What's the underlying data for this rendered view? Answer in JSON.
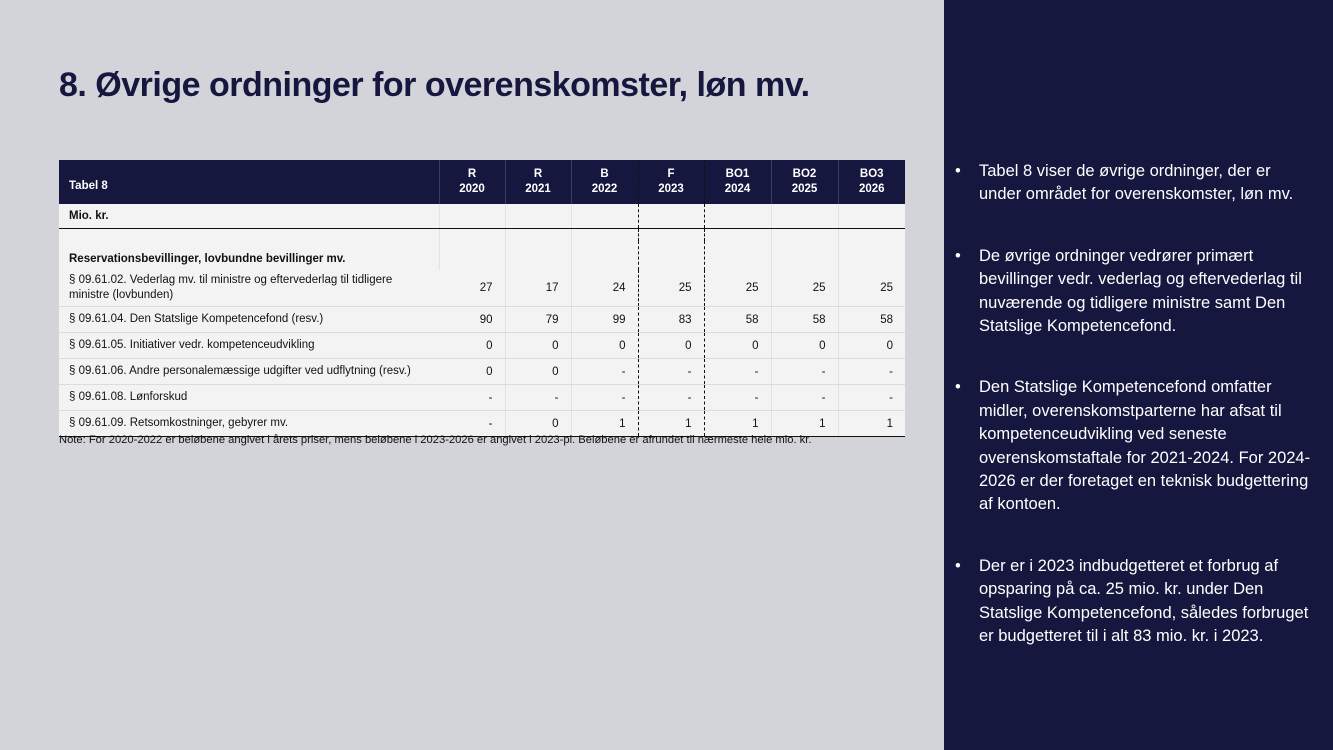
{
  "title": "8. Øvrige ordninger for overenskomster, løn mv.",
  "table": {
    "label": "Tabel 8",
    "columns": [
      {
        "type": "R",
        "year": "2020"
      },
      {
        "type": "R",
        "year": "2021"
      },
      {
        "type": "B",
        "year": "2022"
      },
      {
        "type": "F",
        "year": "2023"
      },
      {
        "type": "BO1",
        "year": "2024"
      },
      {
        "type": "BO2",
        "year": "2025"
      },
      {
        "type": "BO3",
        "year": "2026"
      }
    ],
    "unit": "Mio. kr.",
    "section": "Reservationsbevillinger, lovbundne bevillinger mv.",
    "rows": [
      {
        "label": "§ 09.61.02. Vederlag mv. til ministre og eftervederlag til tidligere ministre (lovbunden)",
        "values": [
          "27",
          "17",
          "24",
          "25",
          "25",
          "25",
          "25"
        ]
      },
      {
        "label": "§ 09.61.04. Den Statslige Kompetencefond (resv.)",
        "values": [
          "90",
          "79",
          "99",
          "83",
          "58",
          "58",
          "58"
        ]
      },
      {
        "label": "§ 09.61.05. Initiativer vedr. kompetenceudvikling",
        "values": [
          "0",
          "0",
          "0",
          "0",
          "0",
          "0",
          "0"
        ]
      },
      {
        "label": "§ 09.61.06. Andre personalemæssige udgifter ved udflytning (resv.)",
        "values": [
          "0",
          "0",
          "-",
          "-",
          "-",
          "-",
          "-"
        ]
      },
      {
        "label": "§ 09.61.08. Lønforskud",
        "values": [
          "-",
          "-",
          "-",
          "-",
          "-",
          "-",
          "-"
        ]
      },
      {
        "label": "§ 09.61.09. Retsomkostninger, gebyrer mv.",
        "values": [
          "-",
          "0",
          "1",
          "1",
          "1",
          "1",
          "1"
        ]
      }
    ],
    "note": "Note: For 2020-2022 er beløbene angivet i årets priser, mens beløbene i 2023-2026 er angivet i 2023-pl. Beløbene er afrundet til nærmeste hele mio. kr."
  },
  "bullets": [
    "Tabel 8 viser de øvrige ordninger, der er under området for overenskomster, løn mv.",
    "De øvrige ordninger vedrører primært bevillinger vedr. vederlag og eftervederlag til nuværende og tidligere ministre samt Den Statslige Kompetencefond.",
    "Den Statslige Kompetencefond omfatter midler, overenskomstparterne har afsat til kompetenceudvikling ved seneste overenskomstaftale for 2021-2024. For 2024-2026 er der foretaget en teknisk budgettering af kontoen.",
    "Der er i 2023 indbudgetteret et forbrug af opsparing på ca. 25 mio. kr. under Den Statslige Kompetencefond, således forbruget er budgetteret til i alt 83 mio. kr. i 2023."
  ],
  "bullet_symbol": "•",
  "colors": {
    "navy": "#16173f",
    "background": "#d3d4d9"
  }
}
